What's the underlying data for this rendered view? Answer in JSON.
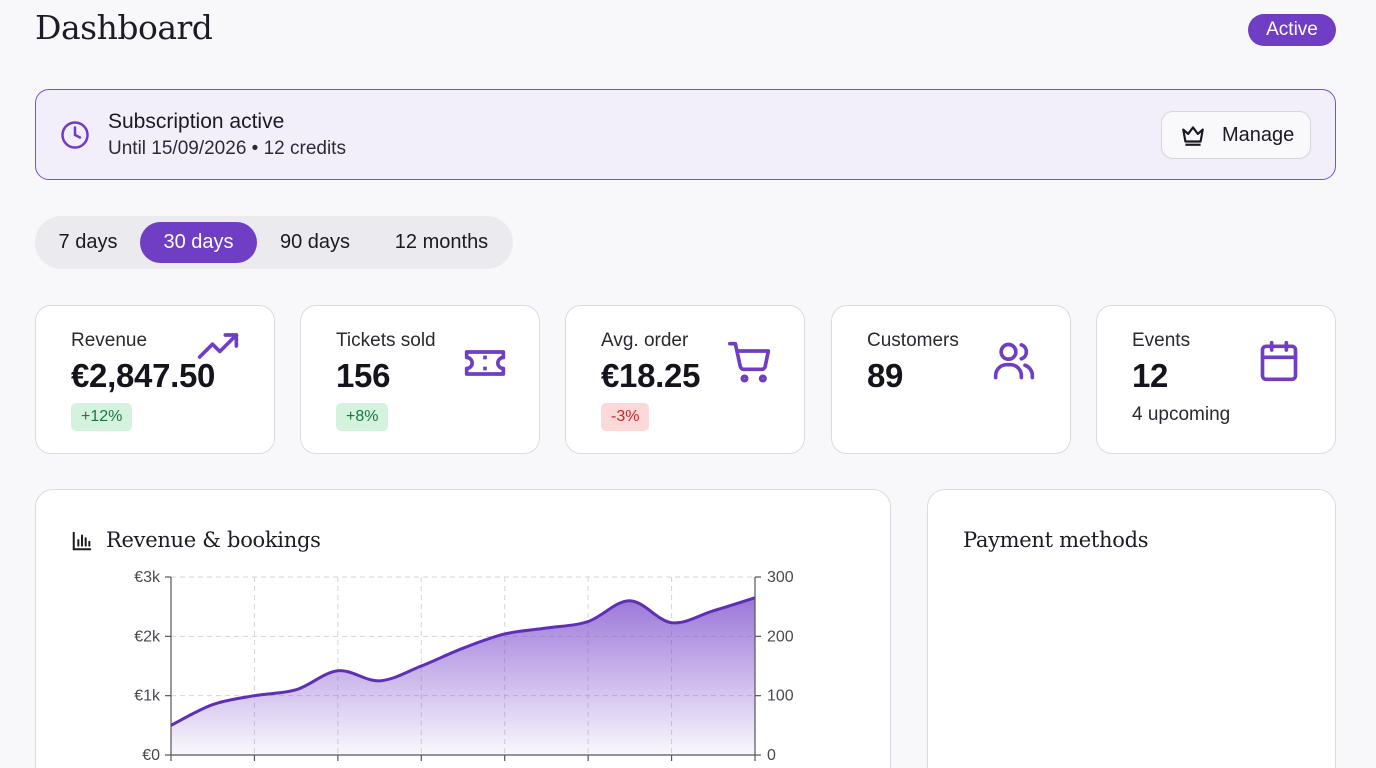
{
  "header": {
    "title": "Dashboard",
    "status": "Active"
  },
  "subscription": {
    "title": "Subscription active",
    "detail": "Until 15/09/2026 • 12 credits",
    "manage_label": "Manage"
  },
  "range_tabs": [
    {
      "label": "7 days",
      "active": false
    },
    {
      "label": "30 days",
      "active": true
    },
    {
      "label": "90 days",
      "active": false
    },
    {
      "label": "12 months",
      "active": false
    }
  ],
  "stats": [
    {
      "label": "Revenue",
      "value": "€2,847.50",
      "badge": "+12%",
      "trend": "up",
      "icon": "trending-up-icon"
    },
    {
      "label": "Tickets sold",
      "value": "156",
      "badge": "+8%",
      "trend": "up",
      "icon": "ticket-icon"
    },
    {
      "label": "Avg. order",
      "value": "€18.25",
      "badge": "-3%",
      "trend": "down",
      "icon": "cart-icon"
    },
    {
      "label": "Customers",
      "value": "89",
      "icon": "users-icon"
    },
    {
      "label": "Events",
      "value": "12",
      "sub": "4 upcoming",
      "icon": "calendar-icon"
    }
  ],
  "revenue_panel": {
    "title": "Revenue & bookings"
  },
  "payments_panel": {
    "title": "Payment methods"
  },
  "colors": {
    "accent": "#6f3ec4",
    "accent_light": "#f2eefa",
    "up": "#177a3c",
    "down": "#c0282b"
  },
  "chart_data": {
    "type": "area",
    "title": "Revenue & bookings",
    "y_left": {
      "ticks": [
        "€0",
        "€1k",
        "€2k",
        "€3k"
      ],
      "range": [
        0,
        3000
      ]
    },
    "y_right": {
      "ticks": [
        "0",
        "100",
        "200",
        "300"
      ],
      "range": [
        0,
        300
      ]
    },
    "x": [
      0,
      1,
      2,
      3,
      4,
      5,
      6,
      7,
      8,
      9,
      10,
      11,
      12,
      13,
      14
    ],
    "series": [
      {
        "axis": "left",
        "values": [
          500,
          850,
          1000,
          1100,
          1420,
          1250,
          1500,
          1800,
          2040,
          2140,
          2250,
          2600,
          2230,
          2430,
          2650
        ]
      }
    ],
    "grid": true
  }
}
